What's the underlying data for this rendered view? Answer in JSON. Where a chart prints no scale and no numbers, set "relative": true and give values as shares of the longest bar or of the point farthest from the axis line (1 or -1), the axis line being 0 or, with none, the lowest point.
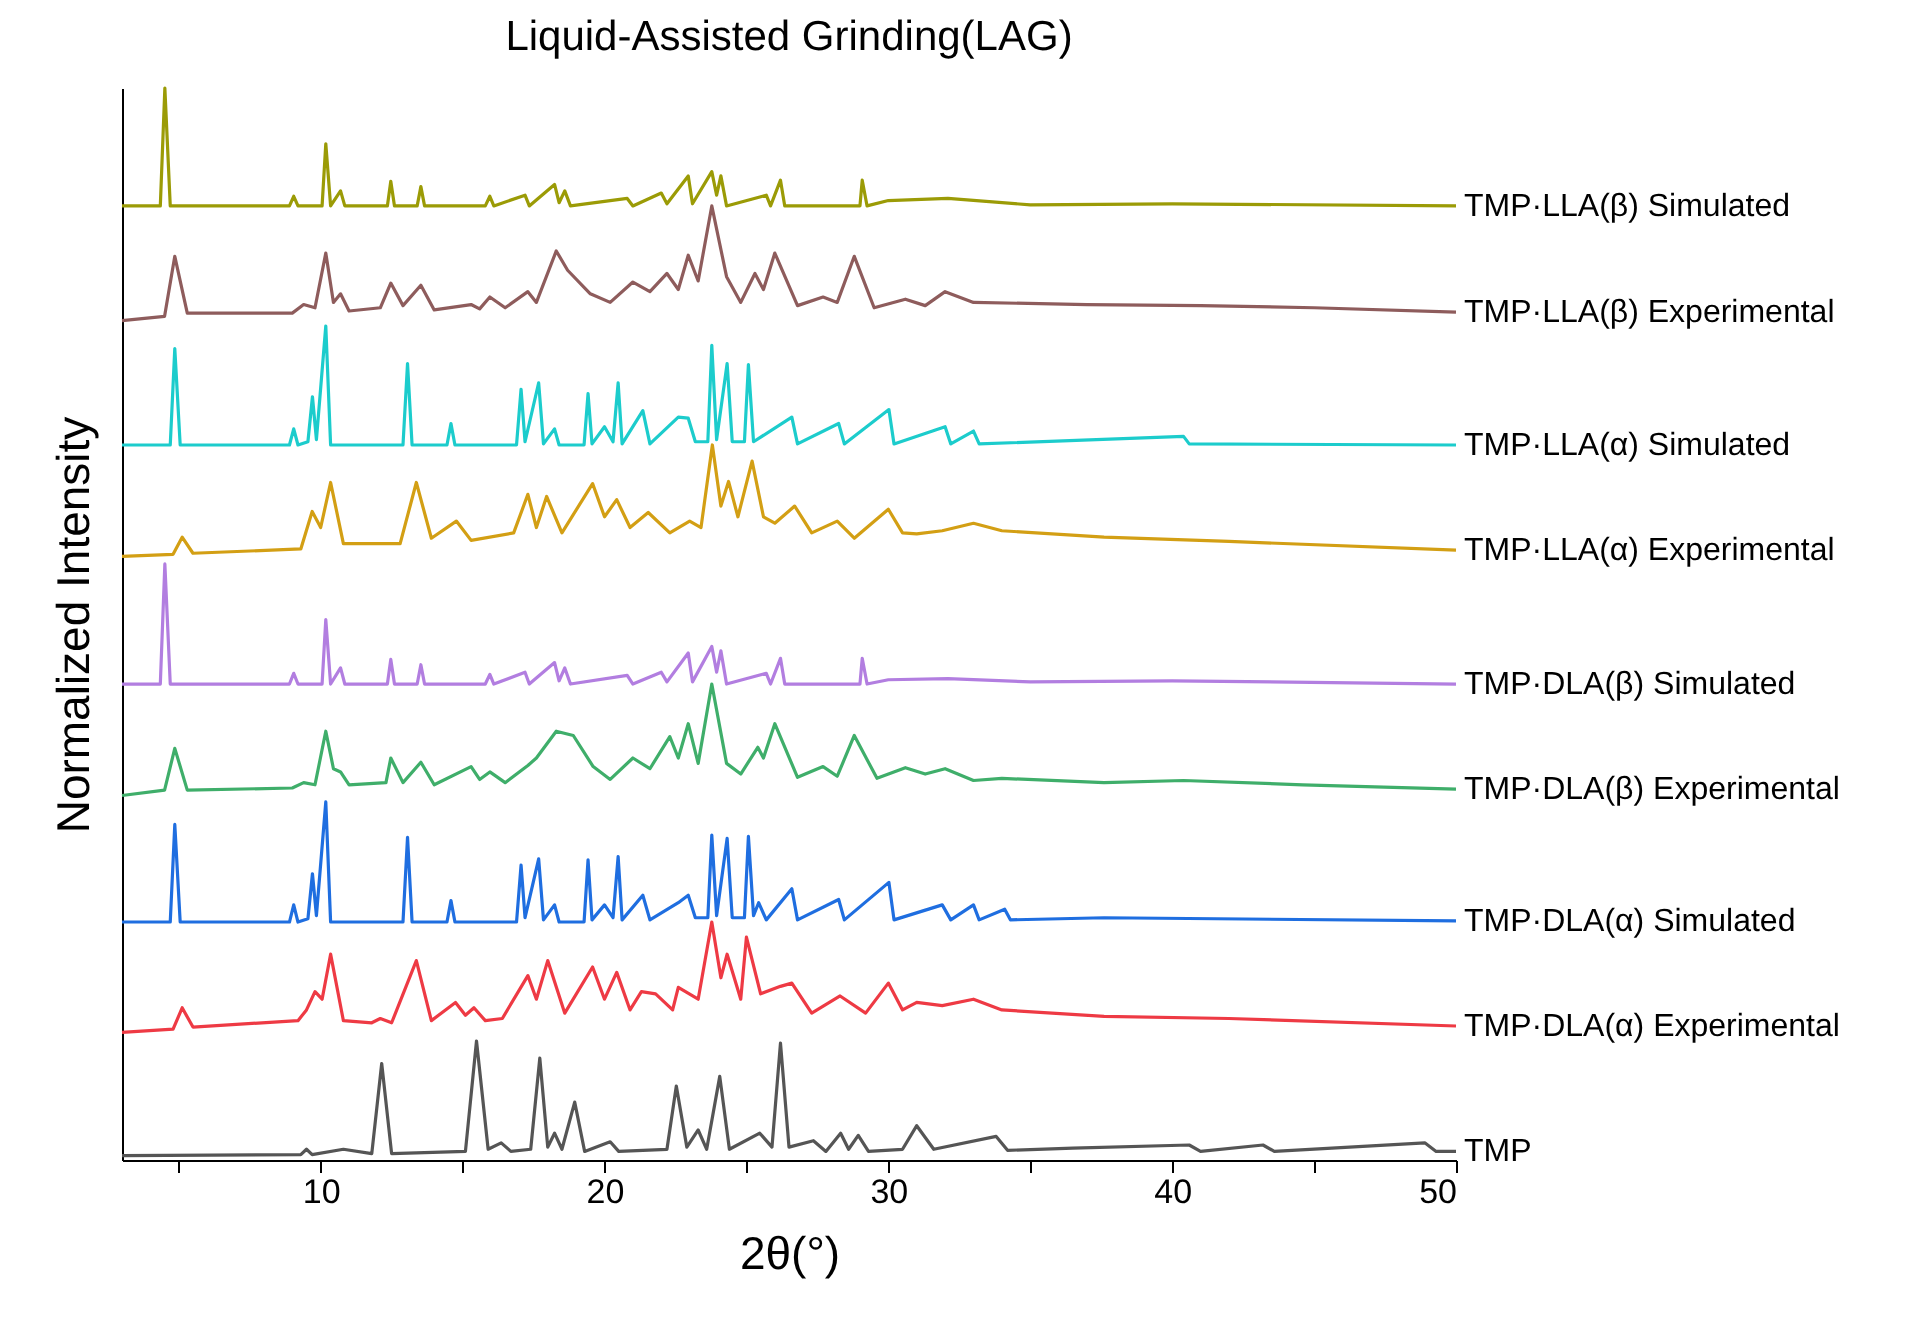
{
  "chart_data": {
    "type": "line",
    "relative": true,
    "title": "Liquid-Assisted Grinding(LAG)",
    "xlabel": "2θ(°)",
    "ylabel": "Normalized Intensity",
    "xlim": [
      3,
      50
    ],
    "xticks": [
      {
        "value": 5,
        "label": null
      },
      10,
      {
        "value": 15,
        "label": null
      },
      20,
      {
        "value": 25,
        "label": null
      },
      30,
      {
        "value": 35,
        "label": null
      },
      40,
      {
        "value": 45,
        "label": null
      },
      50
    ],
    "series": [
      {
        "name": "TMP",
        "color": "#555555",
        "x": [
          3,
          9.3,
          9.5,
          9.7,
          10.8,
          11.8,
          12.15,
          12.5,
          15.1,
          15.49,
          15.9,
          16.36,
          16.7,
          17.4,
          17.72,
          18.0,
          18.24,
          18.5,
          18.95,
          19.3,
          20.2,
          20.5,
          22.2,
          22.53,
          22.9,
          23.3,
          23.6,
          24.06,
          24.4,
          25.47,
          25.9,
          26.2,
          26.5,
          27.36,
          27.8,
          28.32,
          28.6,
          28.94,
          29.3,
          30.5,
          31.0,
          31.6,
          33.8,
          34.2,
          36.5,
          40.6,
          41,
          43.2,
          43.6,
          48.9,
          49.3,
          50
        ],
        "values": [
          0.004,
          0.005,
          0.01,
          0.005,
          0.01,
          0.006,
          0.09,
          0.006,
          0.008,
          0.111,
          0.01,
          0.016,
          0.008,
          0.01,
          0.095,
          0.012,
          0.025,
          0.01,
          0.054,
          0.008,
          0.017,
          0.008,
          0.01,
          0.069,
          0.012,
          0.028,
          0.01,
          0.078,
          0.01,
          0.025,
          0.012,
          0.109,
          0.012,
          0.018,
          0.008,
          0.025,
          0.01,
          0.023,
          0.008,
          0.01,
          0.032,
          0.01,
          0.022,
          0.009,
          0.011,
          0.014,
          0.008,
          0.014,
          0.008,
          0.016,
          0.008,
          0.008
        ]
      },
      {
        "name": "TMP·DLA(α) Experimental",
        "color": "#ee3a44",
        "x": [
          3,
          4.8,
          5.12,
          5.5,
          9.2,
          9.5,
          9.8,
          10.05,
          10.35,
          10.8,
          11.8,
          12.1,
          12.5,
          13.37,
          13.9,
          14.75,
          15.1,
          15.4,
          15.8,
          16.4,
          17.3,
          17.6,
          18.0,
          18.6,
          19.58,
          20.0,
          20.43,
          20.9,
          21.3,
          21.8,
          22.4,
          22.6,
          23.3,
          23.78,
          24.1,
          24.32,
          24.8,
          25.0,
          25.5,
          26.2,
          26.6,
          27.3,
          28.3,
          29.2,
          30.0,
          30.5,
          31.0,
          31.9,
          33,
          34,
          37.6,
          42,
          50
        ],
        "values": [
          0.119,
          0.122,
          0.142,
          0.124,
          0.13,
          0.14,
          0.157,
          0.15,
          0.192,
          0.13,
          0.128,
          0.132,
          0.128,
          0.186,
          0.13,
          0.147,
          0.135,
          0.142,
          0.13,
          0.132,
          0.172,
          0.15,
          0.186,
          0.137,
          0.18,
          0.15,
          0.175,
          0.14,
          0.157,
          0.155,
          0.14,
          0.161,
          0.15,
          0.222,
          0.17,
          0.192,
          0.15,
          0.208,
          0.155,
          0.162,
          0.165,
          0.137,
          0.153,
          0.137,
          0.165,
          0.14,
          0.147,
          0.144,
          0.15,
          0.14,
          0.134,
          0.132,
          0.125
        ]
      },
      {
        "name": "TMP·DLA(α) Simulated",
        "color": "#1f6ee0",
        "x": [
          3,
          4.7,
          4.86,
          5.05,
          8.9,
          9.05,
          9.2,
          9.55,
          9.71,
          9.85,
          10.18,
          10.35,
          12.9,
          13.06,
          13.22,
          14.45,
          14.59,
          14.73,
          16.9,
          17.06,
          17.2,
          17.68,
          17.85,
          18.24,
          18.4,
          19.28,
          19.42,
          19.56,
          20.0,
          20.3,
          20.48,
          20.62,
          21.35,
          21.6,
          22.6,
          22.95,
          23.2,
          23.64,
          23.78,
          23.95,
          24.32,
          24.5,
          24.93,
          25.07,
          25.25,
          25.43,
          25.7,
          26.6,
          26.8,
          28.25,
          28.45,
          30.02,
          30.2,
          31.9,
          32.2,
          33,
          33.2,
          34.1,
          34.3,
          37.6,
          50
        ],
        "values": [
          0.222,
          0.222,
          0.313,
          0.222,
          0.222,
          0.238,
          0.222,
          0.225,
          0.267,
          0.228,
          0.334,
          0.222,
          0.222,
          0.301,
          0.222,
          0.222,
          0.242,
          0.222,
          0.222,
          0.275,
          0.226,
          0.281,
          0.224,
          0.238,
          0.222,
          0.222,
          0.28,
          0.224,
          0.238,
          0.226,
          0.283,
          0.224,
          0.247,
          0.224,
          0.24,
          0.247,
          0.226,
          0.226,
          0.303,
          0.228,
          0.3,
          0.226,
          0.226,
          0.302,
          0.228,
          0.24,
          0.224,
          0.253,
          0.224,
          0.243,
          0.224,
          0.259,
          0.224,
          0.238,
          0.224,
          0.238,
          0.224,
          0.234,
          0.224,
          0.226,
          0.223
        ]
      },
      {
        "name": "TMP·DLA(β) Experimental",
        "color": "#3fae6a",
        "x": [
          3,
          4.5,
          4.86,
          5.3,
          9,
          9.4,
          9.8,
          10.18,
          10.45,
          10.7,
          11.0,
          12.3,
          12.47,
          12.9,
          13.53,
          14,
          15.3,
          15.6,
          15.96,
          16.5,
          17.3,
          17.6,
          18.3,
          18.9,
          19.6,
          20.2,
          21.0,
          21.6,
          22.3,
          22.6,
          22.95,
          23.3,
          23.78,
          24.3,
          24.8,
          25.4,
          25.6,
          26.0,
          26.8,
          27.7,
          28.2,
          28.8,
          29.6,
          30.6,
          31.3,
          32.0,
          33,
          34,
          37.6,
          40.4,
          44.6,
          50
        ],
        "values": [
          0.34,
          0.345,
          0.384,
          0.345,
          0.347,
          0.352,
          0.35,
          0.4,
          0.365,
          0.362,
          0.35,
          0.352,
          0.375,
          0.352,
          0.371,
          0.35,
          0.367,
          0.355,
          0.362,
          0.352,
          0.368,
          0.375,
          0.4,
          0.396,
          0.367,
          0.355,
          0.375,
          0.365,
          0.395,
          0.375,
          0.407,
          0.37,
          0.444,
          0.37,
          0.36,
          0.385,
          0.375,
          0.407,
          0.357,
          0.367,
          0.358,
          0.396,
          0.356,
          0.366,
          0.36,
          0.365,
          0.354,
          0.356,
          0.352,
          0.354,
          0.35,
          0.346
        ]
      },
      {
        "name": "TMP·DLA(β) Simulated",
        "color": "#b27ee0",
        "x": [
          3,
          4.35,
          4.51,
          4.7,
          8.9,
          9.05,
          9.2,
          10.05,
          10.18,
          10.35,
          10.7,
          10.85,
          12.35,
          12.47,
          12.6,
          13.4,
          13.53,
          13.66,
          15.8,
          15.96,
          16.1,
          17.2,
          17.35,
          18.24,
          18.4,
          18.6,
          18.8,
          20.8,
          21,
          22,
          22.2,
          22.95,
          23.1,
          23.78,
          23.95,
          24.1,
          24.3,
          25.7,
          25.85,
          26.2,
          26.35,
          29.0,
          29.08,
          29.25,
          30,
          32.1,
          35,
          40,
          50
        ],
        "values": [
          0.444,
          0.444,
          0.556,
          0.444,
          0.444,
          0.454,
          0.444,
          0.444,
          0.504,
          0.444,
          0.459,
          0.444,
          0.444,
          0.467,
          0.444,
          0.444,
          0.462,
          0.444,
          0.444,
          0.453,
          0.444,
          0.455,
          0.444,
          0.464,
          0.447,
          0.459,
          0.444,
          0.452,
          0.444,
          0.455,
          0.446,
          0.473,
          0.446,
          0.479,
          0.455,
          0.475,
          0.444,
          0.454,
          0.444,
          0.468,
          0.444,
          0.444,
          0.468,
          0.444,
          0.448,
          0.449,
          0.446,
          0.447,
          0.444
        ]
      },
      {
        "name": "TMP·LLA(α) Experimental",
        "color": "#d39f14",
        "x": [
          3,
          4.8,
          5.12,
          5.5,
          9.3,
          9.7,
          10.0,
          10.35,
          10.8,
          12.8,
          13.37,
          13.9,
          14.78,
          15.3,
          16.8,
          17.3,
          17.6,
          17.96,
          18.5,
          19.58,
          20.0,
          20.43,
          20.9,
          21.54,
          22.3,
          23.0,
          23.4,
          23.8,
          24.1,
          24.37,
          24.7,
          25.2,
          25.6,
          26.0,
          26.7,
          27.3,
          28.2,
          28.8,
          30.0,
          30.5,
          31.0,
          31.9,
          33.0,
          34.0,
          37.6,
          42,
          50
        ],
        "values": [
          0.563,
          0.565,
          0.581,
          0.566,
          0.57,
          0.605,
          0.59,
          0.632,
          0.575,
          0.575,
          0.632,
          0.58,
          0.596,
          0.578,
          0.585,
          0.621,
          0.59,
          0.619,
          0.585,
          0.631,
          0.6,
          0.616,
          0.59,
          0.604,
          0.585,
          0.596,
          0.59,
          0.667,
          0.61,
          0.633,
          0.6,
          0.652,
          0.6,
          0.594,
          0.61,
          0.585,
          0.596,
          0.58,
          0.607,
          0.585,
          0.584,
          0.587,
          0.594,
          0.587,
          0.581,
          0.577,
          0.569
        ]
      },
      {
        "name": "TMP·LLA(α) Simulated",
        "color": "#1ccccc",
        "x": [
          3,
          4.7,
          4.86,
          5.05,
          8.9,
          9.05,
          9.2,
          9.55,
          9.71,
          9.85,
          10.18,
          10.35,
          12.9,
          13.06,
          13.22,
          14.45,
          14.59,
          14.73,
          16.9,
          17.06,
          17.2,
          17.68,
          17.85,
          18.24,
          18.4,
          19.28,
          19.42,
          19.56,
          20.0,
          20.3,
          20.48,
          20.62,
          21.35,
          21.6,
          22.6,
          22.95,
          23.2,
          23.64,
          23.78,
          23.95,
          24.32,
          24.5,
          24.93,
          25.07,
          25.25,
          26.6,
          26.8,
          28.25,
          28.45,
          30.02,
          30.2,
          32.0,
          32.2,
          33,
          33.2,
          40.4,
          40.6,
          50
        ],
        "values": [
          0.667,
          0.667,
          0.757,
          0.667,
          0.667,
          0.682,
          0.667,
          0.67,
          0.712,
          0.672,
          0.778,
          0.667,
          0.667,
          0.743,
          0.667,
          0.667,
          0.687,
          0.667,
          0.667,
          0.719,
          0.67,
          0.725,
          0.668,
          0.682,
          0.667,
          0.667,
          0.715,
          0.668,
          0.684,
          0.67,
          0.725,
          0.668,
          0.699,
          0.668,
          0.693,
          0.692,
          0.67,
          0.67,
          0.76,
          0.672,
          0.743,
          0.67,
          0.67,
          0.742,
          0.67,
          0.693,
          0.668,
          0.687,
          0.668,
          0.7,
          0.668,
          0.684,
          0.668,
          0.68,
          0.668,
          0.675,
          0.668,
          0.667
        ]
      },
      {
        "name": "TMP·LLA(β) Experimental",
        "color": "#8e5c5c",
        "x": [
          3,
          4.5,
          4.86,
          5.3,
          9,
          9.4,
          9.8,
          10.18,
          10.45,
          10.7,
          11.0,
          12.1,
          12.47,
          12.9,
          13.53,
          14,
          15.3,
          15.6,
          15.96,
          16.5,
          17.3,
          17.6,
          18.3,
          18.7,
          19.5,
          20.2,
          21.0,
          21.6,
          22.2,
          22.6,
          22.95,
          23.3,
          23.78,
          24.3,
          24.8,
          25.3,
          25.6,
          26.0,
          26.8,
          27.7,
          28.2,
          28.8,
          29.5,
          30.6,
          31.3,
          32.0,
          33,
          37,
          41,
          45,
          50
        ],
        "values": [
          0.783,
          0.787,
          0.843,
          0.79,
          0.79,
          0.798,
          0.795,
          0.846,
          0.8,
          0.808,
          0.792,
          0.795,
          0.818,
          0.797,
          0.816,
          0.793,
          0.798,
          0.794,
          0.805,
          0.795,
          0.81,
          0.8,
          0.848,
          0.83,
          0.808,
          0.8,
          0.819,
          0.81,
          0.827,
          0.812,
          0.844,
          0.82,
          0.89,
          0.824,
          0.8,
          0.827,
          0.812,
          0.846,
          0.797,
          0.805,
          0.8,
          0.843,
          0.795,
          0.803,
          0.797,
          0.81,
          0.8,
          0.798,
          0.797,
          0.795,
          0.791
        ]
      },
      {
        "name": "TMP·LLA(β) Simulated",
        "color": "#9b9b06",
        "x": [
          3,
          4.35,
          4.51,
          4.7,
          8.9,
          9.05,
          9.2,
          10.05,
          10.18,
          10.35,
          10.7,
          10.85,
          12.35,
          12.47,
          12.6,
          13.4,
          13.53,
          13.66,
          15.8,
          15.96,
          16.1,
          17.2,
          17.35,
          18.24,
          18.4,
          18.6,
          18.8,
          20.8,
          21,
          22,
          22.2,
          22.95,
          23.1,
          23.78,
          23.95,
          24.1,
          24.3,
          25.7,
          25.85,
          26.2,
          26.35,
          29.0,
          29.08,
          29.25,
          30,
          32.1,
          35,
          40,
          50
        ],
        "values": [
          0.89,
          0.89,
          1.0,
          0.89,
          0.89,
          0.899,
          0.89,
          0.89,
          0.948,
          0.89,
          0.904,
          0.89,
          0.89,
          0.913,
          0.89,
          0.89,
          0.908,
          0.89,
          0.89,
          0.899,
          0.89,
          0.9,
          0.89,
          0.91,
          0.893,
          0.904,
          0.89,
          0.897,
          0.89,
          0.902,
          0.892,
          0.918,
          0.892,
          0.922,
          0.9,
          0.918,
          0.89,
          0.9,
          0.89,
          0.914,
          0.89,
          0.89,
          0.914,
          0.89,
          0.895,
          0.897,
          0.891,
          0.892,
          0.89
        ]
      }
    ]
  }
}
